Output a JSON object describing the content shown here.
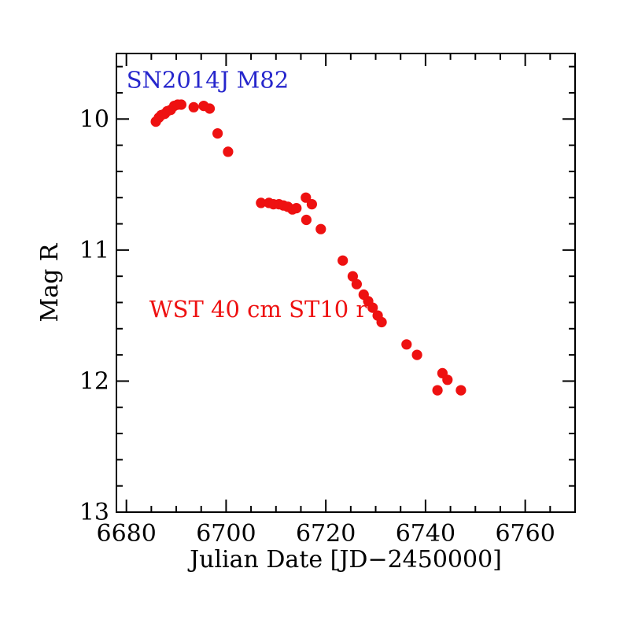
{
  "page": {
    "background": "#ffffff"
  },
  "chart_data": {
    "type": "scatter",
    "title": "SN2014J M82",
    "xlabel": "Julian Date [JD−2450000]",
    "ylabel": "Mag R",
    "xlim": [
      6678,
      6770
    ],
    "ylim": [
      9.5,
      13.0
    ],
    "y_axis_inverted_magnitude": true,
    "grid": false,
    "legend_position": "none",
    "axis_color": "#000000",
    "x_major_ticks": [
      6680,
      6700,
      6720,
      6740,
      6760
    ],
    "x_minor_step": 5,
    "y_major_ticks": [
      10,
      11,
      12,
      13
    ],
    "y_minor_step": 0.2,
    "annotations": [
      {
        "id": "target-label",
        "text": "SN2014J M82",
        "color": "#2626cc",
        "x": 6680.0,
        "y": 9.7,
        "anchor": "start"
      },
      {
        "id": "instrument-label",
        "text": "WST 40 cm ST10 r",
        "color": "#ee1111",
        "x": 6684.6,
        "y": 11.45,
        "anchor": "start"
      }
    ],
    "series": [
      {
        "name": "WST 40 cm ST10 r",
        "marker": "filled-circle",
        "color": "#ee1111",
        "marker_radius_px": 6.6,
        "points": [
          [
            6685.9,
            10.02
          ],
          [
            6686.5,
            9.99
          ],
          [
            6687.0,
            9.97
          ],
          [
            6687.7,
            9.96
          ],
          [
            6688.2,
            9.94
          ],
          [
            6688.9,
            9.93
          ],
          [
            6689.6,
            9.9
          ],
          [
            6690.3,
            9.89
          ],
          [
            6691.0,
            9.89
          ],
          [
            6693.5,
            9.91
          ],
          [
            6695.5,
            9.9
          ],
          [
            6696.7,
            9.92
          ],
          [
            6698.3,
            10.11
          ],
          [
            6700.4,
            10.25
          ],
          [
            6707.0,
            10.64
          ],
          [
            6708.6,
            10.64
          ],
          [
            6709.5,
            10.65
          ],
          [
            6710.6,
            10.65
          ],
          [
            6711.5,
            10.66
          ],
          [
            6712.4,
            10.67
          ],
          [
            6713.3,
            10.69
          ],
          [
            6714.1,
            10.68
          ],
          [
            6716.0,
            10.6
          ],
          [
            6716.1,
            10.77
          ],
          [
            6717.2,
            10.65
          ],
          [
            6719.0,
            10.84
          ],
          [
            6723.4,
            11.08
          ],
          [
            6725.4,
            11.2
          ],
          [
            6726.2,
            11.26
          ],
          [
            6727.6,
            11.34
          ],
          [
            6728.5,
            11.39
          ],
          [
            6729.4,
            11.44
          ],
          [
            6730.4,
            11.5
          ],
          [
            6731.2,
            11.55
          ],
          [
            6736.2,
            11.72
          ],
          [
            6738.3,
            11.8
          ],
          [
            6742.4,
            12.07
          ],
          [
            6743.4,
            11.94
          ],
          [
            6744.4,
            11.99
          ],
          [
            6747.1,
            12.07
          ]
        ]
      }
    ]
  }
}
